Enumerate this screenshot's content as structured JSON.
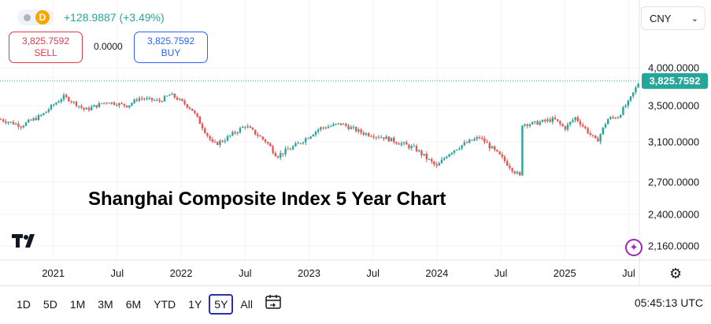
{
  "header": {
    "symbol_badge": "D",
    "change": "+128.9887 (+3.49%)",
    "currency": "CNY"
  },
  "trade": {
    "sell_price": "3,825.7592",
    "sell_label": "SELL",
    "buy_price": "3,825.7592",
    "buy_label": "BUY",
    "spread": "0.0000"
  },
  "chart_data": {
    "type": "candlestick",
    "title": "Shanghai Composite Index 5 Year Chart",
    "currency": "CNY",
    "last_price": 3825.7592,
    "last_price_label": "3,825.7592",
    "y_ticks": [
      {
        "value": 4000,
        "label": "4,000.0000"
      },
      {
        "value": 3500,
        "label": "3,500.0000"
      },
      {
        "value": 3100,
        "label": "3,100.0000"
      },
      {
        "value": 2700,
        "label": "2,700.0000"
      },
      {
        "value": 2400,
        "label": "2,400.0000"
      },
      {
        "value": 2160,
        "label": "2,160.0000"
      }
    ],
    "ylim": [
      2000,
      4200
    ],
    "x_ticks": [
      "2021",
      "Jul",
      "2022",
      "Jul",
      "2023",
      "Jul",
      "2024",
      "Jul",
      "2025",
      "Jul"
    ],
    "x_tick_dates": [
      "2021-01",
      "2021-07",
      "2022-01",
      "2022-07",
      "2023-01",
      "2023-07",
      "2024-01",
      "2024-07",
      "2025-01",
      "2025-07"
    ],
    "x_range": [
      "2020-08",
      "2025-08"
    ],
    "series": [
      {
        "name": "",
        "dates": [
          "2020-08",
          "2020-10",
          "2020-12",
          "2021-02",
          "2021-04",
          "2021-06",
          "2021-08",
          "2021-09",
          "2021-11",
          "2021-12",
          "2022-02",
          "2022-04",
          "2022-05",
          "2022-07",
          "2022-09",
          "2022-10",
          "2022-12",
          "2023-02",
          "2023-04",
          "2023-06",
          "2023-08",
          "2023-09",
          "2023-11",
          "2024-01",
          "2024-02",
          "2024-03",
          "2024-05",
          "2024-07",
          "2024-09",
          "2024-09",
          "2024-10",
          "2024-12",
          "2025-01",
          "2025-02",
          "2025-04",
          "2025-05",
          "2025-06",
          "2025-07",
          "2025-08"
        ],
        "values": [
          3350,
          3280,
          3400,
          3620,
          3450,
          3550,
          3500,
          3600,
          3560,
          3650,
          3460,
          3070,
          3120,
          3280,
          3100,
          2960,
          3080,
          3250,
          3300,
          3200,
          3150,
          3110,
          3030,
          2850,
          2980,
          3050,
          3150,
          2950,
          2730,
          3300,
          3300,
          3350,
          3250,
          3370,
          3100,
          3350,
          3380,
          3550,
          3825
        ]
      }
    ],
    "grid": true,
    "legend": "none"
  },
  "overlay": {
    "title": "Shanghai Composite Index 5 Year Chart"
  },
  "timeframes": [
    "1D",
    "5D",
    "1M",
    "3M",
    "6M",
    "YTD",
    "1Y",
    "5Y",
    "All"
  ],
  "active_timeframe": "5Y",
  "clock": "05:45:13 UTC",
  "colors": {
    "up": "#26a69a",
    "down": "#ef5350",
    "accent": "#2962ff",
    "active_border": "#2a2eaa"
  }
}
